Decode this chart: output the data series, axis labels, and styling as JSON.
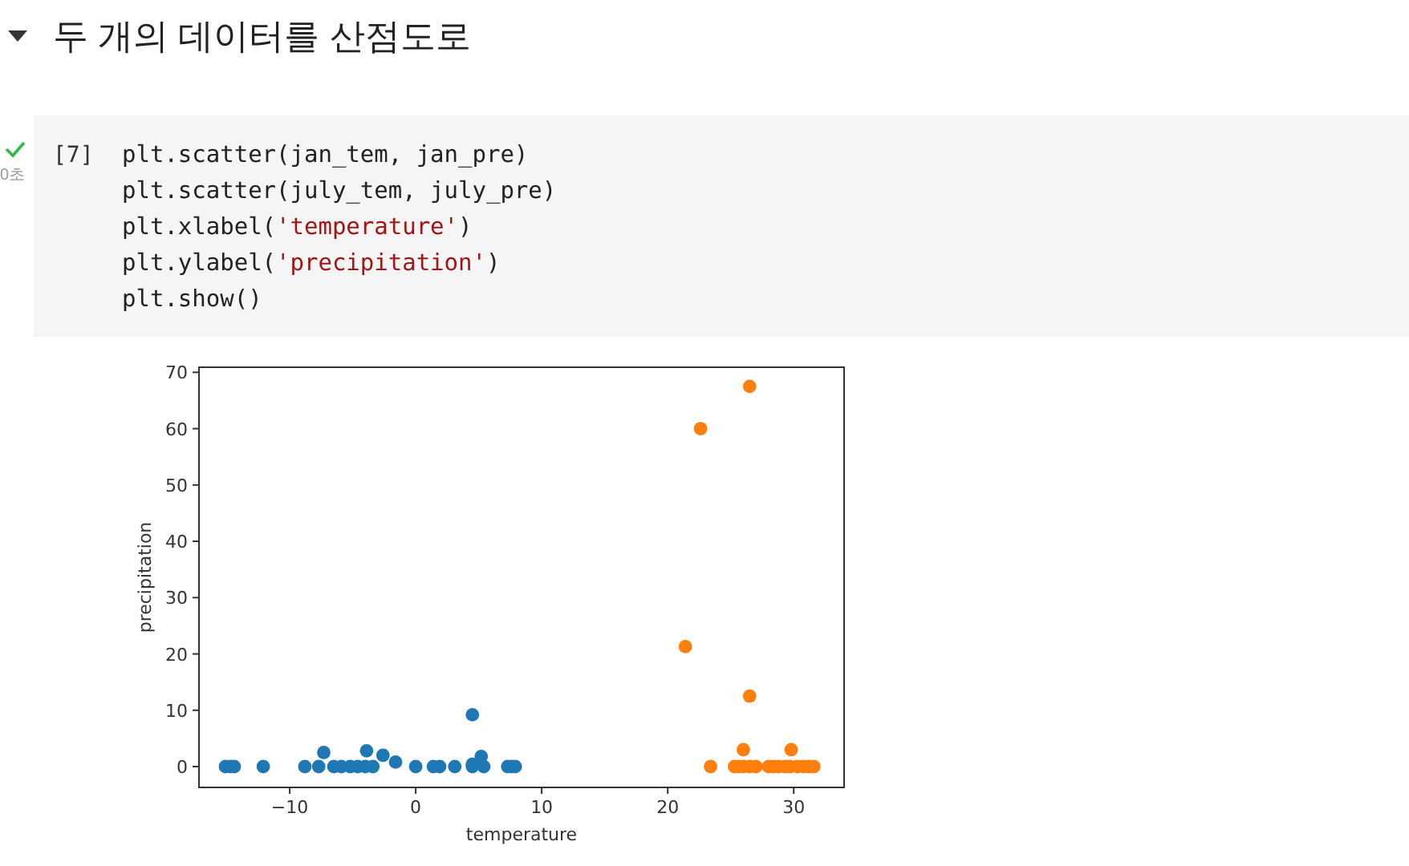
{
  "chart_data": {
    "type": "scatter",
    "title": "두 개의 데이터를 산점도로",
    "xlabel": "temperature",
    "ylabel": "precipitation",
    "annotations": [
      "[7]",
      "0초",
      "plt.scatter(jan_tem, jan_pre)",
      "plt.scatter(july_tem, july_pre)",
      "plt.xlabel('temperature')",
      "plt.ylabel('precipitation')",
      "plt.show()"
    ],
    "xlim": [
      -17.2,
      34.0
    ],
    "ylim": [
      -3.7,
      70.9
    ],
    "xticks": [
      -10,
      0,
      10,
      20,
      30
    ],
    "yticks": [
      0,
      10,
      20,
      30,
      40,
      50,
      60,
      70
    ],
    "grid": false,
    "marker": "circle",
    "series": [
      {
        "color": "#1f77b4",
        "x": [
          -15.1,
          -14.7,
          -14.4,
          -12.1,
          -8.8,
          -7.7,
          -6.5,
          -5.9,
          -5.2,
          -4.6,
          -4.0,
          -3.4,
          0,
          1.4,
          1.9,
          3.1,
          4.5,
          5.4,
          7.3,
          7.6,
          7.9,
          -7.3,
          -3.9,
          -2.6,
          -1.6,
          4.5,
          4.5,
          5.2
        ],
        "values": [
          0,
          0,
          0,
          0,
          0,
          0,
          0,
          0,
          0,
          0,
          0,
          0,
          0,
          0,
          0,
          0,
          0,
          0,
          0,
          0,
          0,
          2.5,
          2.8,
          2.0,
          0.8,
          9.2,
          0.4,
          1.8
        ]
      },
      {
        "color": "#ff7f0e",
        "x": [
          26.5,
          22.6,
          21.4,
          26.5,
          26.0,
          29.8,
          23.4,
          25.3,
          25.6,
          26.0,
          26.5,
          27.0,
          28.0,
          28.4,
          28.8,
          29.3,
          29.7,
          30.3,
          30.8,
          31.2,
          31.6
        ],
        "values": [
          67.5,
          60.0,
          21.3,
          12.5,
          3.0,
          3.0,
          0,
          0,
          0,
          0,
          0,
          0,
          0,
          0,
          0,
          0,
          0,
          0,
          0,
          0,
          0
        ]
      }
    ]
  }
}
